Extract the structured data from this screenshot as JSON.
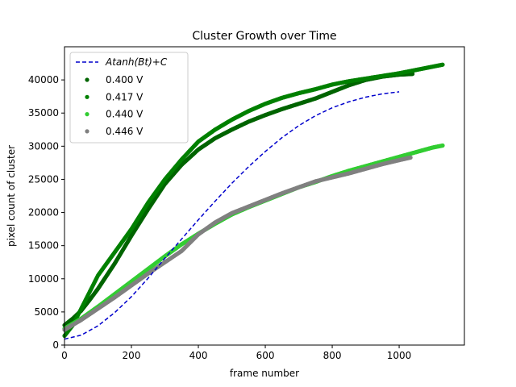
{
  "chart_data": {
    "type": "scatter",
    "title": "Cluster Growth over Time",
    "xlabel": "frame number",
    "ylabel": "pixel count of cluster",
    "xlim": [
      0,
      1195
    ],
    "ylim": [
      0,
      45000
    ],
    "xticks": [
      0,
      200,
      400,
      600,
      800,
      1000
    ],
    "yticks": [
      0,
      5000,
      10000,
      15000,
      20000,
      25000,
      30000,
      35000,
      40000
    ],
    "grid": false,
    "legend_position": "top-left",
    "fit": {
      "label": "Atanh(Bt)+C",
      "style": "dashed",
      "color": "#0000cc",
      "x": [
        0,
        50,
        100,
        150,
        200,
        250,
        300,
        350,
        400,
        450,
        500,
        550,
        600,
        650,
        700,
        750,
        800,
        850,
        900,
        950,
        1000
      ],
      "y": [
        900,
        1500,
        2900,
        4900,
        7300,
        10100,
        13100,
        16000,
        18900,
        21700,
        24400,
        26900,
        29200,
        31300,
        33100,
        34600,
        35800,
        36700,
        37400,
        37900,
        38200
      ]
    },
    "series": [
      {
        "name": "0.400 V",
        "color": "#006400",
        "x": [
          0,
          25,
          50,
          75,
          100,
          150,
          200,
          250,
          300,
          350,
          400,
          450,
          500,
          550,
          600,
          650,
          700,
          750,
          800,
          850,
          900,
          950,
          1000,
          1040
        ],
        "y": [
          3000,
          4000,
          5200,
          6800,
          8500,
          12300,
          16500,
          20500,
          24300,
          27200,
          29500,
          31200,
          32500,
          33700,
          34700,
          35600,
          36400,
          37200,
          38200,
          39200,
          40000,
          40500,
          40800,
          40900
        ]
      },
      {
        "name": "0.417 V",
        "color": "#008000",
        "x": [
          0,
          25,
          50,
          75,
          100,
          150,
          200,
          250,
          300,
          350,
          400,
          450,
          500,
          550,
          600,
          650,
          700,
          750,
          800,
          850,
          900,
          950,
          1000,
          1050,
          1100,
          1130
        ],
        "y": [
          1400,
          3000,
          5500,
          8000,
          10500,
          14000,
          17500,
          21500,
          25000,
          28000,
          30700,
          32500,
          34000,
          35300,
          36400,
          37300,
          38000,
          38600,
          39300,
          39800,
          40200,
          40600,
          41000,
          41500,
          42000,
          42300
        ]
      },
      {
        "name": "0.440 V",
        "color": "#32cd32",
        "x": [
          0,
          50,
          100,
          150,
          200,
          250,
          300,
          350,
          400,
          450,
          500,
          550,
          600,
          650,
          700,
          750,
          800,
          850,
          900,
          950,
          1000,
          1050,
          1100,
          1130
        ],
        "y": [
          2500,
          4000,
          5800,
          7700,
          9600,
          11500,
          13400,
          15200,
          16800,
          18300,
          19700,
          20800,
          21800,
          22800,
          23800,
          24600,
          25500,
          26300,
          27000,
          27700,
          28400,
          29100,
          29800,
          30100
        ]
      },
      {
        "name": "0.446 V",
        "color": "#808080",
        "x": [
          0,
          50,
          100,
          150,
          200,
          250,
          300,
          350,
          400,
          450,
          500,
          550,
          600,
          650,
          700,
          750,
          800,
          850,
          900,
          950,
          1000,
          1035
        ],
        "y": [
          2300,
          3800,
          5500,
          7200,
          9000,
          10800,
          12500,
          14200,
          16700,
          18500,
          19900,
          20900,
          21900,
          22900,
          23800,
          24700,
          25300,
          25900,
          26600,
          27300,
          27900,
          28300
        ]
      }
    ]
  }
}
